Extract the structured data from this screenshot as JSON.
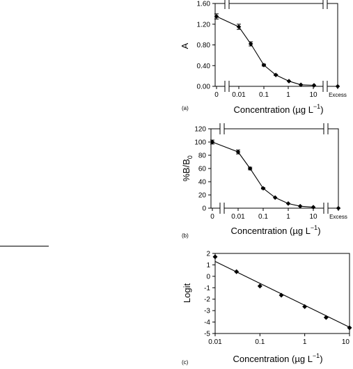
{
  "chart_data": [
    {
      "panel": "(a)",
      "type": "line",
      "ylabel": "A",
      "xlabel": "Concentration (µg L−1)",
      "x_tick_labels": [
        "0",
        "0.01",
        "0.1",
        "1",
        "10",
        "Excess"
      ],
      "y_tick_labels": [
        "0.00",
        "0.40",
        "0.80",
        "1.20",
        "1.60"
      ],
      "ylim": [
        0,
        1.6
      ],
      "x_scale": "log with axis breaks",
      "zero_point": {
        "x": "0",
        "y": 1.35,
        "err": 0.05
      },
      "points": [
        {
          "x": 0.01,
          "y": 1.15,
          "err": 0.05
        },
        {
          "x": 0.03,
          "y": 0.82,
          "err": 0.04
        },
        {
          "x": 0.1,
          "y": 0.41,
          "err": 0.02
        },
        {
          "x": 0.3,
          "y": 0.22,
          "err": 0.01
        },
        {
          "x": 1,
          "y": 0.1,
          "err": 0
        },
        {
          "x": 3,
          "y": 0.03,
          "err": 0
        },
        {
          "x": 10,
          "y": 0.02,
          "err": 0
        }
      ],
      "excess_point": {
        "x": "Excess",
        "y": 0.0
      }
    },
    {
      "panel": "(b)",
      "type": "line",
      "ylabel": "%B/B",
      "ylabel_sub": "0",
      "xlabel": "Concentration (µg L−1)",
      "x_tick_labels": [
        "0",
        "0.01",
        "0.1",
        "1",
        "10",
        "Excess"
      ],
      "y_tick_labels": [
        "0",
        "20",
        "40",
        "60",
        "80",
        "100",
        "120"
      ],
      "ylim": [
        0,
        120
      ],
      "x_scale": "log with axis breaks",
      "zero_point": {
        "x": "0",
        "y": 100,
        "err": 3
      },
      "points": [
        {
          "x": 0.01,
          "y": 85,
          "err": 3
        },
        {
          "x": 0.03,
          "y": 60,
          "err": 2
        },
        {
          "x": 0.1,
          "y": 30,
          "err": 1
        },
        {
          "x": 0.3,
          "y": 16,
          "err": 0
        },
        {
          "x": 1,
          "y": 7,
          "err": 0
        },
        {
          "x": 3,
          "y": 3,
          "err": 0
        },
        {
          "x": 10,
          "y": 1.5,
          "err": 0
        }
      ],
      "excess_point": {
        "x": "Excess",
        "y": 0
      }
    },
    {
      "panel": "(c)",
      "type": "scatter",
      "ylabel": "Logit",
      "xlabel": "Concentration (µg L−1)",
      "x_tick_labels": [
        "0.01",
        "0.1",
        "1",
        "10"
      ],
      "y_tick_labels": [
        "-5",
        "-4",
        "-3",
        "-2",
        "-1",
        "0",
        "1",
        "2"
      ],
      "xlim": [
        0.01,
        10
      ],
      "ylim": [
        -5,
        2
      ],
      "x_scale": "log",
      "points": [
        {
          "x": 0.01,
          "y": 1.7
        },
        {
          "x": 0.03,
          "y": 0.4
        },
        {
          "x": 0.1,
          "y": -0.85
        },
        {
          "x": 0.3,
          "y": -1.65
        },
        {
          "x": 1,
          "y": -2.65
        },
        {
          "x": 3,
          "y": -3.6
        },
        {
          "x": 10,
          "y": -4.5
        }
      ],
      "fit_line": [
        {
          "x": 0.01,
          "y": 1.3
        },
        {
          "x": 10,
          "y": -4.45
        }
      ]
    }
  ]
}
